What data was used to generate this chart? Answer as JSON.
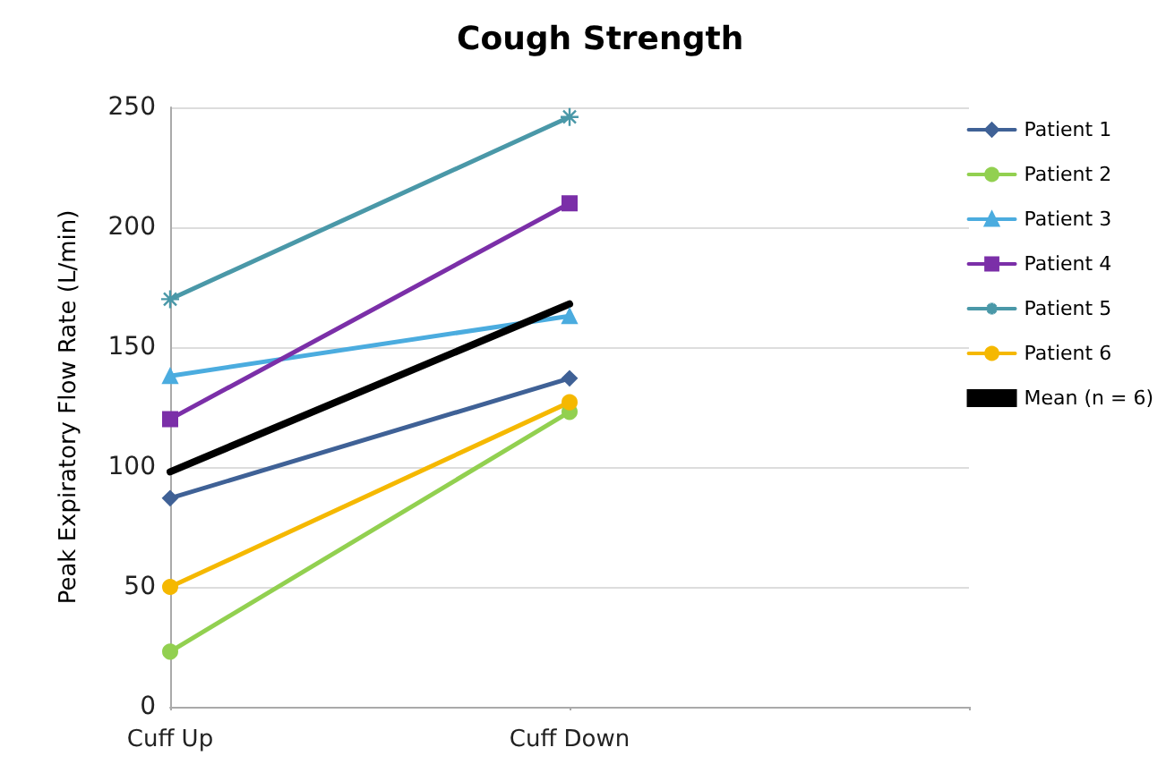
{
  "chart_data": {
    "type": "line",
    "title": "Cough Strength",
    "ylabel": "Peak Expiratory Flow Rate (L/min)",
    "categories": [
      "Cuff Up",
      "Cuff Down"
    ],
    "series": [
      {
        "name": "Patient 1",
        "color": "#3f6196",
        "marker": "diamond",
        "values": [
          87,
          137
        ]
      },
      {
        "name": "Patient 2",
        "color": "#92d050",
        "marker": "circle",
        "values": [
          23,
          123
        ]
      },
      {
        "name": "Patient 3",
        "color": "#4bacdf",
        "marker": "triangle",
        "values": [
          138,
          163
        ]
      },
      {
        "name": "Patient 4",
        "color": "#7b2fa8",
        "marker": "square",
        "values": [
          120,
          210
        ]
      },
      {
        "name": "Patient 5",
        "color": "#4a98a8",
        "marker": "cross",
        "values": [
          170,
          246
        ]
      },
      {
        "name": "Patient 6",
        "color": "#f5b800",
        "marker": "circle",
        "values": [
          50,
          127
        ]
      },
      {
        "name": "Mean (n = 6)",
        "color": "#000000",
        "marker": "none",
        "values": [
          98,
          168
        ]
      }
    ],
    "ylim": [
      0,
      250
    ],
    "yticks": [
      0,
      50,
      100,
      150,
      200,
      250
    ],
    "grid": "y",
    "legend": "right",
    "line_style": "solid"
  }
}
